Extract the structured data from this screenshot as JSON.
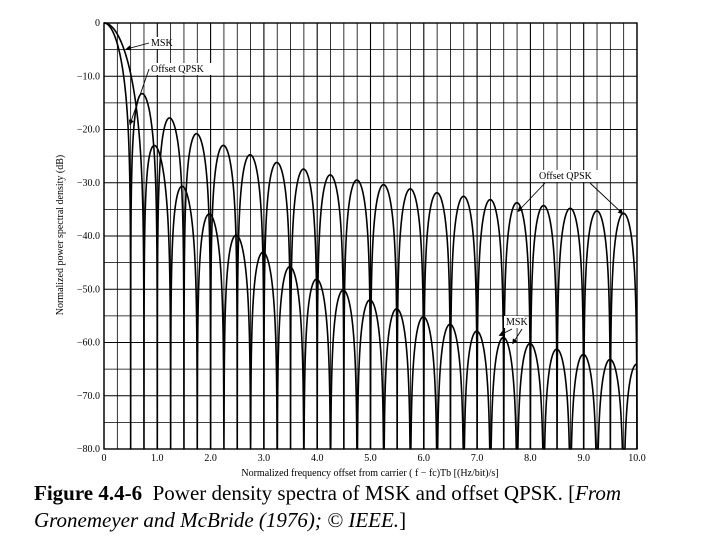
{
  "chart_data": {
    "type": "line",
    "title": "",
    "xlabel": "Normalized frequency offset from carrier ( f − fc)Tb [(Hz/bit)/s]",
    "ylabel": "Normalized power spectral density (dB)",
    "xlim": [
      0,
      10
    ],
    "ylim": [
      -80,
      0
    ],
    "x_ticks": [
      "0",
      "1.0",
      "2.0",
      "3.0",
      "4.0",
      "5.0",
      "6.0",
      "7.0",
      "8.0",
      "9.0",
      "10.0"
    ],
    "y_ticks": [
      "0",
      "−10.0",
      "−20.0",
      "−30.0",
      "−40.0",
      "−50.0",
      "−60.0",
      "−70.0",
      "−80.0"
    ],
    "grid": true,
    "series": [
      {
        "name": "MSK",
        "formula": "16/pi^2 * (cos(2*pi*f)/(1-16f^2))^2, normalized to 0 dB",
        "sidelobe_peaks_db": [
          [
            1.2,
            -23.0
          ],
          [
            1.7,
            -31.3
          ],
          [
            2.2,
            -36.6
          ],
          [
            2.7,
            -40.8
          ],
          [
            3.7,
            -46.3
          ],
          [
            4.7,
            -50.2
          ],
          [
            6.7,
            -56.5
          ],
          [
            8.7,
            -61.0
          ],
          [
            9.7,
            -62.9
          ]
        ],
        "nulls_x": [
          0.75,
          1.25,
          1.75,
          2.25,
          2.75,
          3.25,
          3.75,
          4.25,
          4.75,
          5.25,
          5.75,
          6.25,
          6.75,
          7.25,
          7.75,
          8.25,
          8.75,
          9.25,
          9.75
        ],
        "color": "#000000"
      },
      {
        "name": "Offset QPSK",
        "formula": "(sin(2*pi*f)/(2*pi*f))^2, normalized to 0 dB",
        "sidelobe_peaks_db": [
          [
            0.75,
            -13.5
          ],
          [
            1.25,
            -17.9
          ],
          [
            1.75,
            -20.8
          ],
          [
            2.25,
            -23.0
          ],
          [
            2.75,
            -24.7
          ],
          [
            3.75,
            -27.5
          ],
          [
            4.75,
            -29.5
          ],
          [
            6.75,
            -32.6
          ],
          [
            8.75,
            -34.8
          ],
          [
            9.75,
            -35.8
          ]
        ],
        "nulls_x": [
          0.5,
          1.0,
          1.5,
          2.0,
          2.5,
          3.0,
          3.5,
          4.0,
          4.5,
          5.0,
          5.5,
          6.0,
          6.5,
          7.0,
          7.5,
          8.0,
          8.5,
          9.0,
          9.5,
          10.0
        ],
        "color": "#000000"
      }
    ],
    "annotations": [
      "MSK",
      "Offset QPSK",
      "Offset QPSK",
      "MSK"
    ]
  },
  "caption": {
    "figure_number": "Figure 4.4-6",
    "text": "Power density spectra of MSK and offset QPSK. [",
    "source_italic": "From Gronemeyer and McBride (1976); © IEEE.",
    "close": "]"
  }
}
